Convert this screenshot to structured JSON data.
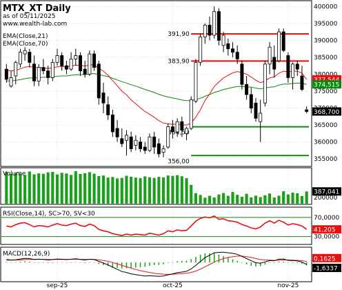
{
  "chart_data": {
    "type": "candlestick",
    "title": "MTX_XT Daily",
    "subtitle": "as of 05/11/2025",
    "watermark": "www.wealth-lab.com",
    "indicator_labels": {
      "ema21": "EMA(Close,21)",
      "ema70": "EMA(Close,70)",
      "volume": "Volume",
      "rsi": "RSI(Close,14), SC>70, SV<30",
      "macd": "MACD(12,26,9)"
    },
    "x_ticks": [
      "sep-25",
      "oct-25",
      "nov-25"
    ],
    "price_axis": {
      "ticks": [
        "400000",
        "395000",
        "390000",
        "385000",
        "380000",
        "375000",
        "370000",
        "365000",
        "360000",
        "355000"
      ],
      "ylim": [
        353000,
        401500
      ]
    },
    "volume_axis": {
      "ticks": [
        "250000",
        "200000"
      ],
      "ylim": [
        150000,
        440000
      ]
    },
    "rsi_axis": {
      "ticks": [
        "70,0000",
        "30,0000"
      ],
      "ylim": [
        15,
        90
      ]
    },
    "macd_axis": {
      "ylim": [
        -9500,
        7500
      ]
    },
    "candles": [
      [
        381500,
        383000,
        377500,
        378500
      ],
      [
        376500,
        381000,
        376000,
        379000
      ],
      [
        379500,
        384000,
        377000,
        383500
      ],
      [
        383000,
        387500,
        382000,
        386500
      ],
      [
        386000,
        388000,
        384000,
        387000
      ],
      [
        386500,
        387500,
        382000,
        383500
      ],
      [
        383000,
        385500,
        376500,
        378000
      ],
      [
        378000,
        383000,
        376500,
        382000
      ],
      [
        382000,
        384500,
        380000,
        381000
      ],
      [
        381000,
        382500,
        377000,
        379000
      ],
      [
        379000,
        384500,
        378000,
        383500
      ],
      [
        383500,
        387500,
        382500,
        385500
      ],
      [
        385500,
        386500,
        381000,
        382500
      ],
      [
        382500,
        384000,
        380000,
        381500
      ],
      [
        381500,
        386500,
        381000,
        384500
      ],
      [
        384500,
        387500,
        382500,
        385500
      ],
      [
        385500,
        386500,
        379500,
        381000
      ],
      [
        381500,
        384000,
        379000,
        380000
      ],
      [
        380000,
        387000,
        379500,
        386000
      ],
      [
        386000,
        387000,
        381000,
        382000
      ],
      [
        383000,
        384000,
        371000,
        373000
      ],
      [
        374500,
        377500,
        368500,
        371500
      ],
      [
        371000,
        373500,
        366500,
        368000
      ],
      [
        368000,
        369500,
        361500,
        363000
      ],
      [
        364000,
        366500,
        360000,
        361500
      ],
      [
        361000,
        364000,
        358500,
        359500
      ],
      [
        360500,
        363500,
        356000,
        362000
      ],
      [
        361500,
        363000,
        357000,
        358000
      ],
      [
        359000,
        362000,
        357500,
        360500
      ],
      [
        360000,
        361500,
        357000,
        358000
      ],
      [
        358500,
        360000,
        356500,
        357500
      ],
      [
        357500,
        362500,
        357000,
        361500
      ],
      [
        361500,
        363000,
        356500,
        358500
      ],
      [
        359500,
        361000,
        355500,
        356500
      ],
      [
        357000,
        359000,
        355500,
        358000
      ],
      [
        358500,
        365500,
        358000,
        364500
      ],
      [
        364500,
        366500,
        361000,
        363000
      ],
      [
        363000,
        367000,
        361500,
        366000
      ],
      [
        366000,
        367500,
        361500,
        363500
      ],
      [
        362500,
        364500,
        360500,
        364000
      ],
      [
        364000,
        373500,
        363500,
        372500
      ],
      [
        372000,
        384500,
        371500,
        383500
      ],
      [
        383500,
        392000,
        382500,
        391000
      ],
      [
        391000,
        395000,
        389000,
        394500
      ],
      [
        394500,
        397000,
        390000,
        391500
      ],
      [
        391500,
        400000,
        390500,
        398500
      ],
      [
        398500,
        399500,
        388500,
        390000
      ],
      [
        388500,
        392500,
        386500,
        391500
      ],
      [
        389000,
        390500,
        385500,
        387500
      ],
      [
        387500,
        389500,
        385000,
        386500
      ],
      [
        386500,
        388500,
        383000,
        384500
      ],
      [
        383000,
        384000,
        375500,
        377000
      ],
      [
        377000,
        379500,
        372500,
        374000
      ],
      [
        374000,
        376000,
        368500,
        370000
      ],
      [
        371500,
        373000,
        366000,
        367000
      ],
      [
        366000,
        372500,
        360000,
        368500
      ],
      [
        371500,
        384000,
        370500,
        383000
      ],
      [
        383000,
        389500,
        380000,
        388000
      ],
      [
        385000,
        388500,
        379000,
        381500
      ],
      [
        384000,
        393500,
        383500,
        392500
      ],
      [
        392500,
        393500,
        386500,
        387000
      ],
      [
        385500,
        386500,
        377500,
        379000
      ],
      [
        379000,
        383500,
        375500,
        383000
      ],
      [
        383000,
        384000,
        379500,
        381500
      ],
      [
        379500,
        382500,
        375000,
        375500
      ],
      [
        369500,
        370500,
        368500,
        369000
      ]
    ],
    "volume": [
      410000,
      395000,
      402000,
      398000,
      385000,
      415000,
      392000,
      400000,
      396000,
      408000,
      412000,
      391000,
      404000,
      399000,
      387000,
      418000,
      395000,
      401000,
      410000,
      397000,
      378000,
      382000,
      365000,
      370000,
      358000,
      362000,
      380000,
      372000,
      365000,
      360000,
      375000,
      368000,
      362000,
      371000,
      366000,
      382000,
      379000,
      385000,
      376000,
      360000,
      305000,
      237000,
      222000,
      199000,
      215000,
      201000,
      226000,
      238000,
      215000,
      246000,
      223000,
      207000,
      232000,
      201000,
      216000,
      204000,
      219000,
      234000,
      201000,
      216000,
      252000,
      226000,
      241000,
      236000,
      213000,
      251000
    ],
    "volume_value_label": "387,041",
    "ema21": [
      381200,
      381000,
      381100,
      381600,
      382100,
      382300,
      382000,
      382000,
      381900,
      381700,
      381900,
      382200,
      382300,
      382200,
      382400,
      382700,
      382600,
      382400,
      382800,
      382700,
      381800,
      380900,
      379700,
      378100,
      376600,
      375000,
      373900,
      372400,
      371300,
      370100,
      369000,
      368200,
      367300,
      366300,
      365600,
      365400,
      365200,
      365300,
      365100,
      365000,
      365600,
      367300,
      369500,
      372200,
      374200,
      376400,
      377700,
      378900,
      379700,
      380400,
      380800,
      380500,
      380000,
      379200,
      378200,
      377500,
      378000,
      378900,
      379200,
      380300,
      380900,
      380700,
      380900,
      380900,
      380300,
      378500
    ],
    "ema70": [
      378000,
      378000,
      378200,
      378400,
      378700,
      378900,
      378900,
      379000,
      379100,
      379100,
      379200,
      379400,
      379500,
      379500,
      379700,
      379800,
      379900,
      379900,
      380100,
      380200,
      379900,
      379600,
      379300,
      378800,
      378300,
      377800,
      377400,
      376900,
      376500,
      376000,
      375500,
      375100,
      374600,
      374100,
      373600,
      373300,
      373000,
      372700,
      372400,
      372200,
      372200,
      372500,
      372900,
      373500,
      374000,
      374600,
      375000,
      375500,
      375800,
      376100,
      376400,
      376400,
      376300,
      376200,
      375900,
      375700,
      375900,
      376200,
      376300,
      376800,
      377100,
      377100,
      377300,
      377400,
      377300,
      377000
    ],
    "rsi": [
      52,
      50,
      55,
      58,
      59,
      55,
      50,
      53,
      52,
      50,
      54,
      57,
      54,
      53,
      56,
      58,
      53,
      51,
      56,
      53,
      45,
      42,
      40,
      36,
      34,
      32,
      35,
      33,
      35,
      34,
      33,
      37,
      35,
      33,
      36,
      42,
      40,
      44,
      42,
      43,
      52,
      62,
      68,
      71,
      69,
      73,
      66,
      67,
      63,
      62,
      60,
      55,
      52,
      48,
      46,
      50,
      58,
      63,
      58,
      64,
      60,
      54,
      57,
      55,
      52,
      45
    ],
    "macd": [
      1500,
      1300,
      1400,
      1800,
      2100,
      2000,
      1600,
      1700,
      1600,
      1300,
      1500,
      1800,
      1700,
      1500,
      1700,
      1900,
      1600,
      1300,
      1700,
      1500,
      600,
      -300,
      -1200,
      -2400,
      -3500,
      -4600,
      -5100,
      -5800,
      -6200,
      -6600,
      -6900,
      -6800,
      -6900,
      -7100,
      -6900,
      -6300,
      -5800,
      -5200,
      -4900,
      -4500,
      -3300,
      -1500,
      500,
      2500,
      3700,
      5000,
      5200,
      5300,
      5000,
      4700,
      4200,
      3100,
      2000,
      900,
      -100,
      -400,
      300,
      1000,
      900,
      1700,
      1800,
      1100,
      1000,
      800,
      200,
      -1000
    ],
    "macd_signal": [
      1200,
      1200,
      1250,
      1350,
      1500,
      1600,
      1600,
      1620,
      1620,
      1560,
      1550,
      1600,
      1620,
      1600,
      1620,
      1680,
      1660,
      1590,
      1610,
      1590,
      1390,
      1050,
      600,
      0,
      -700,
      -1500,
      -2200,
      -2900,
      -3600,
      -4200,
      -4700,
      -5100,
      -5500,
      -5800,
      -6000,
      -6100,
      -6000,
      -5900,
      -5700,
      -5500,
      -5100,
      -4400,
      -3400,
      -2200,
      -1000,
      200,
      1200,
      2000,
      2600,
      3000,
      3300,
      3300,
      3000,
      2600,
      2000,
      1500,
      1300,
      1200,
      1100,
      1200,
      1300,
      1300,
      1200,
      1100,
      900,
      500
    ],
    "resistance_lines": [
      {
        "value": 391900,
        "label": "391,90",
        "start": 41,
        "end": 65
      },
      {
        "value": 383900,
        "label": "383,90",
        "start": 41,
        "end": 65
      }
    ],
    "support_lines": [
      {
        "value": 364500,
        "label": "364,50",
        "start": 41,
        "end": 65
      },
      {
        "value": 356000,
        "label": "356,00",
        "start": 41,
        "end": 65
      }
    ],
    "value_labels": {
      "close_ema21": "377,544",
      "ema70": "374,515",
      "last_close": "368,700",
      "rsi": "41,205",
      "macd_top": "0,1625",
      "macd_bottom": "-1,6337"
    },
    "colors": {
      "up": "#000000",
      "down": "#000000",
      "ema21": "#e81010",
      "ema70": "#0a8a0a",
      "volume": "#1aa01a",
      "resistance": "#ff0000",
      "support": "#0a8a0a",
      "rsi": "#e81010",
      "rsi_bands": "#0a8a0a",
      "macd": "#000000",
      "macd_signal": "#e81010",
      "macd_hist": "#1aa01a",
      "grid": "#c8c8c8"
    }
  }
}
